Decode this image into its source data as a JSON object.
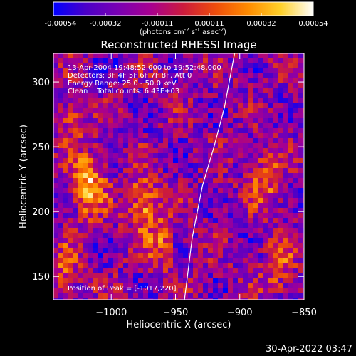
{
  "colorbar": {
    "ticks": [
      "-0.00054",
      "-0.00032",
      "-0.00011",
      "0.00011",
      "0.00032",
      "0.00054"
    ],
    "units_main": "(photons cm",
    "units_exp1": "-2",
    "units_mid": " s",
    "units_exp2": "-1",
    "units_mid2": " asec",
    "units_exp3": "-2",
    "units_end": ")",
    "colormap": [
      "#0000ff",
      "#4b00c8",
      "#7a00b3",
      "#a8008f",
      "#cc1b3c",
      "#ee4d0b",
      "#ff8c00",
      "#ffd12a",
      "#ffffff"
    ]
  },
  "chart_data": {
    "type": "heatmap",
    "title": "Reconstructed RHESSI Image",
    "xlabel": "Heliocentric X (arcsec)",
    "ylabel": "Heliocentric Y (arcsec)",
    "xlim": [
      -1045,
      -850
    ],
    "ylim": [
      132,
      322
    ],
    "x_ticks": [
      -1000,
      -950,
      -900,
      -850
    ],
    "y_ticks": [
      150,
      200,
      250,
      300
    ],
    "x_tick_labels": [
      "−1000",
      "−950",
      "−900",
      "−850"
    ],
    "y_tick_labels": [
      "150",
      "200",
      "250",
      "300"
    ],
    "value_range": [
      -0.00054,
      0.00054
    ],
    "limb_curve": [
      [
        -943,
        132
      ],
      [
        -937,
        180
      ],
      [
        -929,
        220
      ],
      [
        -920,
        250
      ],
      [
        -912,
        280
      ],
      [
        -904,
        322
      ]
    ],
    "peak": {
      "x": -1017,
      "y": 220
    },
    "annotations": [
      "13-Apr-2004 19:48:52.000 to 19:52:48.000",
      "Detectors: 3F 4F 5F 6F 7F 8F, Att 0",
      "Energy Range: 25.0 - 50.0 keV",
      "Clean    Total counts: 6.43E+03",
      "Position of Peak = [-1017,220]"
    ]
  },
  "timestamp": "30-Apr-2022 03:47"
}
